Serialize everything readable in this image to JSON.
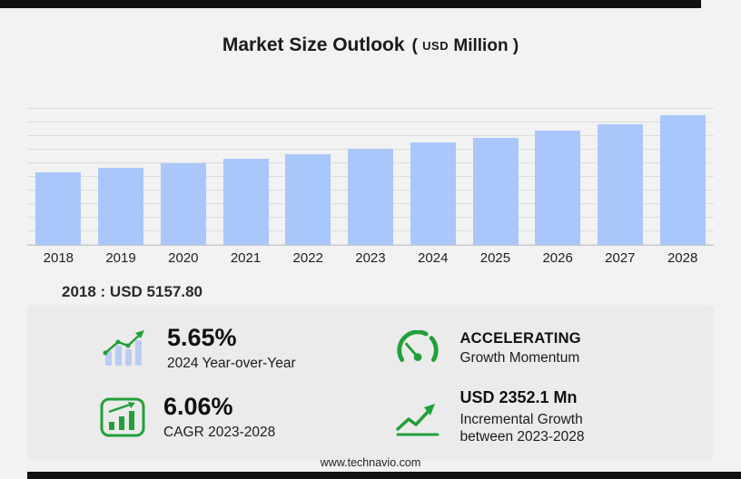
{
  "page": {
    "title": "Market Size Outlook",
    "unit_open": "(",
    "unit_currency": "USD",
    "unit_word": "Million",
    "unit_close": ")",
    "footer": "www.technavio.com"
  },
  "chart_data": {
    "type": "bar",
    "title": "Market Size Outlook (USD Million)",
    "categories": [
      "2018",
      "2019",
      "2020",
      "2021",
      "2022",
      "2023",
      "2024",
      "2025",
      "2026",
      "2027",
      "2028"
    ],
    "values": [
      5157.8,
      5480,
      5810,
      6140,
      6460,
      6869.2,
      7257.3,
      7640,
      8100,
      8550,
      9221.3
    ],
    "xlabel": "",
    "ylabel": "",
    "ylim": [
      0,
      9800
    ],
    "grid": true,
    "legend": "none",
    "bar_color": "#a9c7fa"
  },
  "annotation": {
    "base_value_text": "2018 : USD 5157.80"
  },
  "stats": [
    {
      "icon": "yoy-growth-chart-icon",
      "value": "5.65%",
      "label": "2024 Year-over-Year"
    },
    {
      "icon": "speedometer-icon",
      "value": "ACCELERATING",
      "label": "Growth Momentum"
    },
    {
      "icon": "cagr-bar-chart-icon",
      "value": "6.06%",
      "label": "CAGR 2023-2028"
    },
    {
      "icon": "incremental-growth-chart-icon",
      "value": "USD 2352.1 Mn",
      "label": "Incremental Growth between 2023-2028"
    }
  ],
  "colors": {
    "accent_green": "#21a038",
    "bar_blue": "#a9c7fa",
    "panel_gray": "#ebebeb",
    "background": "#f2f2f2",
    "bar_black": "#111111"
  }
}
